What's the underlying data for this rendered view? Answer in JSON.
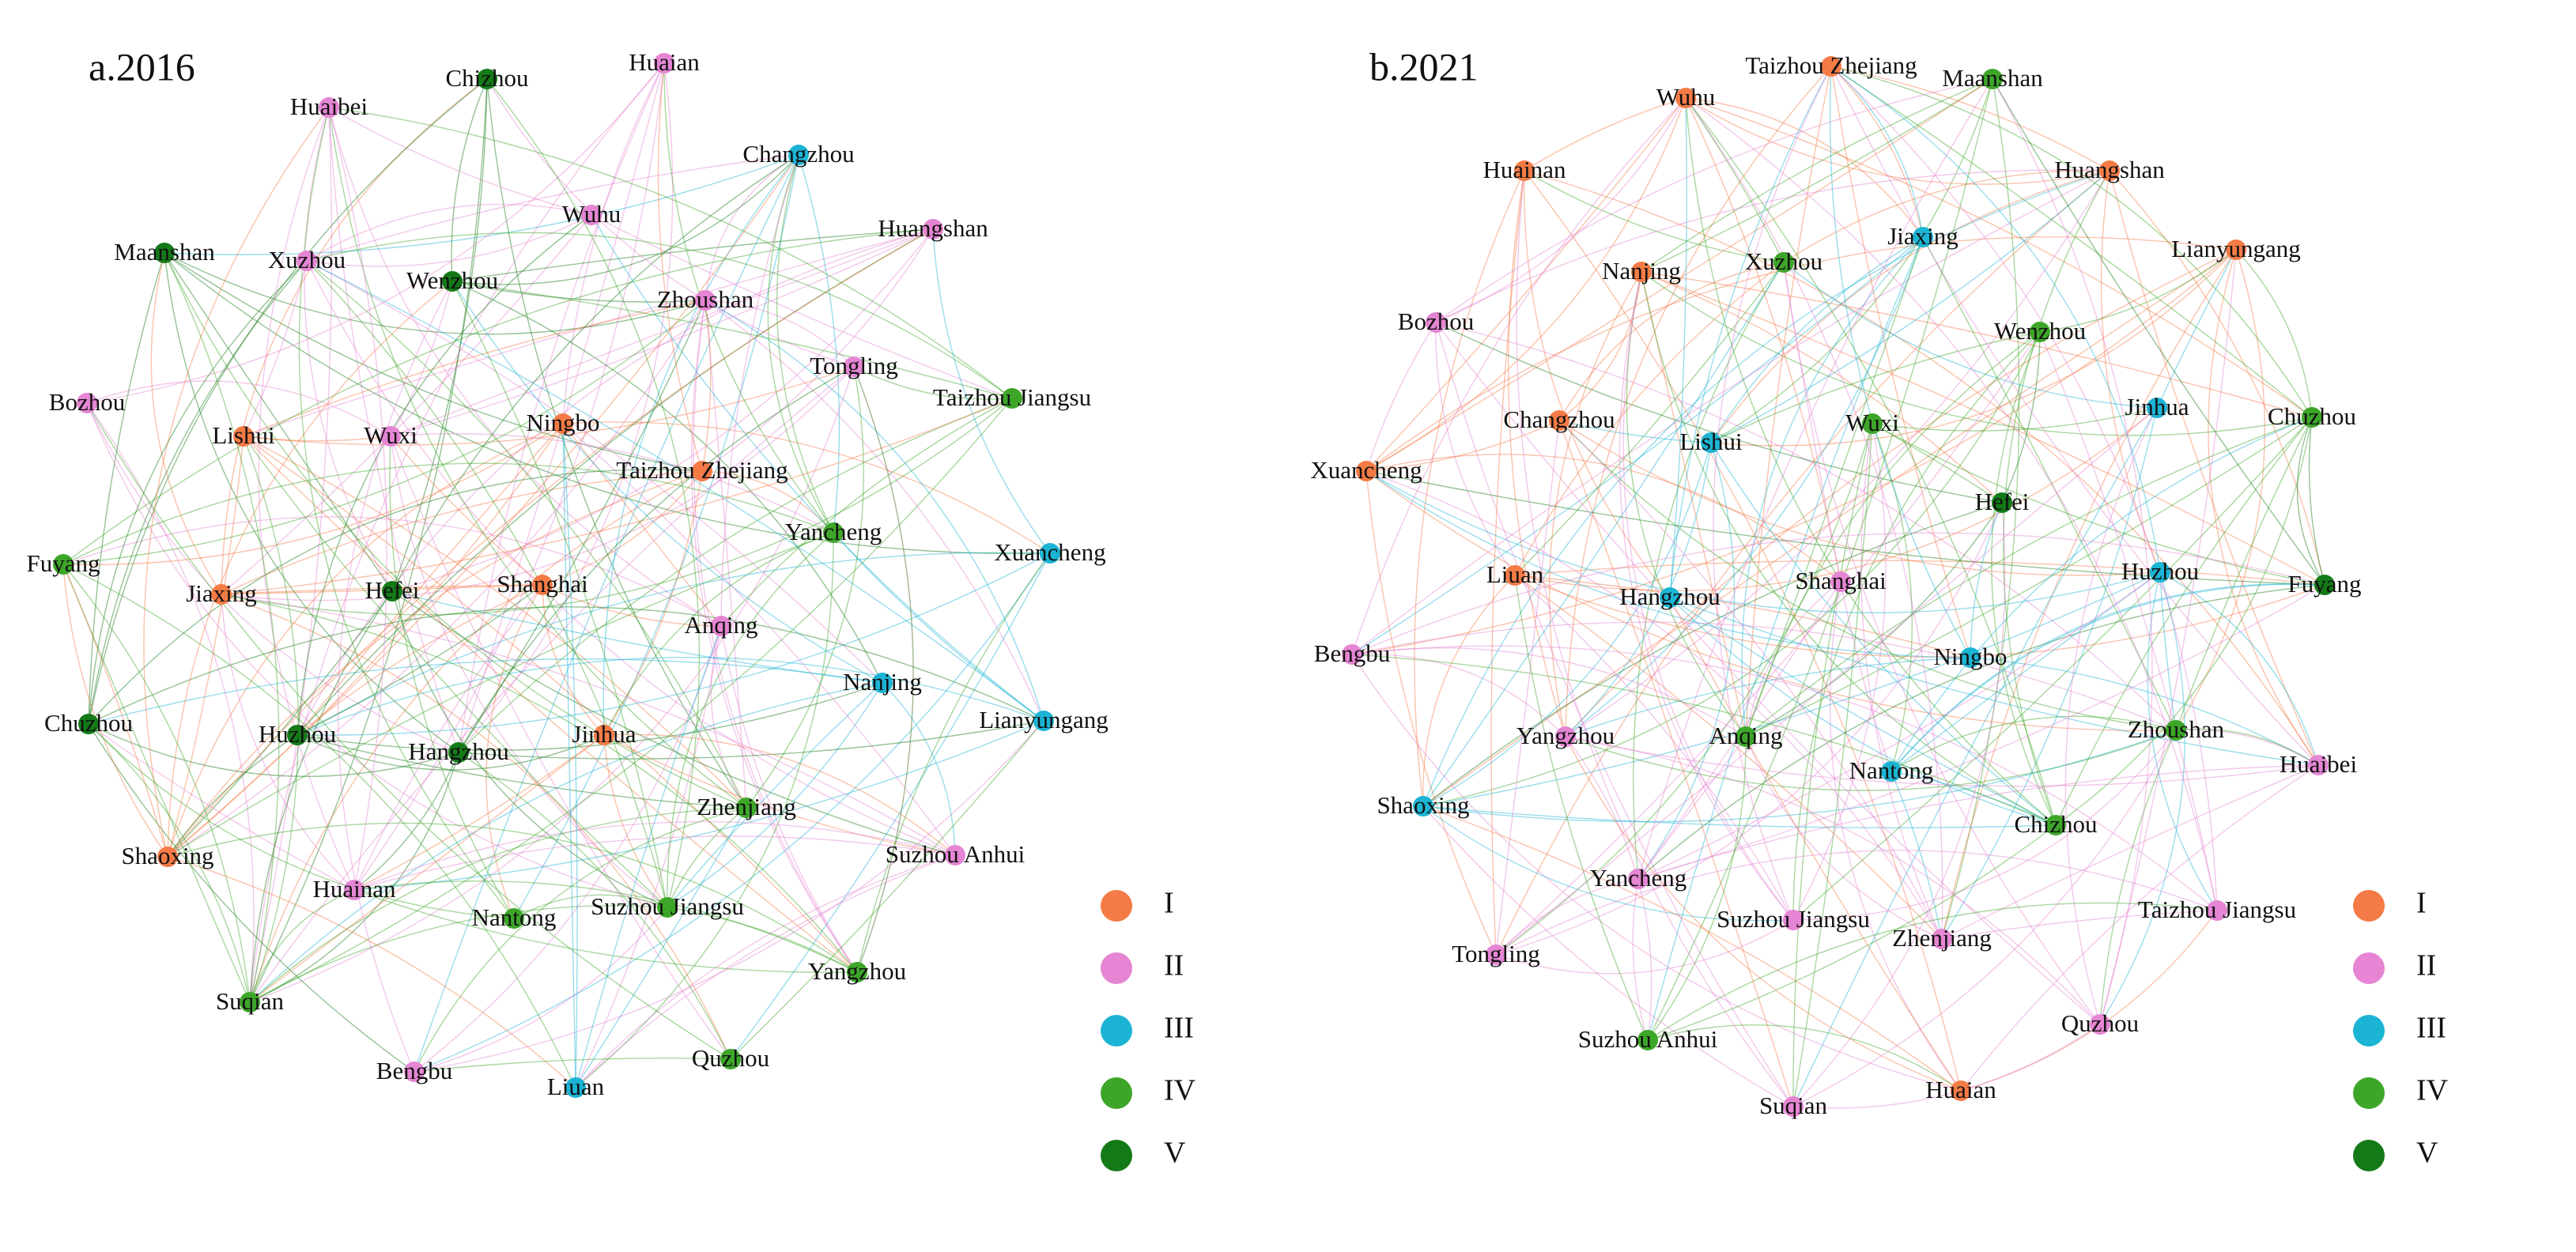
{
  "panels": [
    {
      "title": "a.2016",
      "nodes": [
        {
          "label": "Chizhou",
          "group": "V"
        },
        {
          "label": "Huaian",
          "group": "II"
        },
        {
          "label": "Huaibei",
          "group": "II"
        },
        {
          "label": "Changzhou",
          "group": "III"
        },
        {
          "label": "Wuhu",
          "group": "II"
        },
        {
          "label": "Huangshan",
          "group": "II"
        },
        {
          "label": "Maanshan",
          "group": "V"
        },
        {
          "label": "Xuzhou",
          "group": "II"
        },
        {
          "label": "Wenzhou",
          "group": "V"
        },
        {
          "label": "Zhoushan",
          "group": "II"
        },
        {
          "label": "Tongling",
          "group": "II"
        },
        {
          "label": "Taizhou Jiangsu",
          "group": "IV"
        },
        {
          "label": "Bozhou",
          "group": "II"
        },
        {
          "label": "Lishui",
          "group": "I"
        },
        {
          "label": "Wuxi",
          "group": "II"
        },
        {
          "label": "Ningbo",
          "group": "I"
        },
        {
          "label": "Taizhou Zhejiang",
          "group": "I"
        },
        {
          "label": "Yancheng",
          "group": "IV"
        },
        {
          "label": "Xuancheng",
          "group": "III"
        },
        {
          "label": "Fuyang",
          "group": "IV"
        },
        {
          "label": "Jiaxing",
          "group": "I"
        },
        {
          "label": "Hefei",
          "group": "V"
        },
        {
          "label": "Shanghai",
          "group": "I"
        },
        {
          "label": "Anqing",
          "group": "II"
        },
        {
          "label": "Nanjing",
          "group": "III"
        },
        {
          "label": "Lianyungang",
          "group": "III"
        },
        {
          "label": "Chuzhou",
          "group": "V"
        },
        {
          "label": "Huzhou",
          "group": "V"
        },
        {
          "label": "Hangzhou",
          "group": "V"
        },
        {
          "label": "Jinhua",
          "group": "I"
        },
        {
          "label": "Zhenjiang",
          "group": "IV"
        },
        {
          "label": "Shaoxing",
          "group": "I"
        },
        {
          "label": "Suzhou Anhui",
          "group": "II"
        },
        {
          "label": "Huainan",
          "group": "II"
        },
        {
          "label": "Nantong",
          "group": "IV"
        },
        {
          "label": "Suzhou Jiangsu",
          "group": "IV"
        },
        {
          "label": "Yangzhou",
          "group": "IV"
        },
        {
          "label": "Suqian",
          "group": "IV"
        },
        {
          "label": "Bengbu",
          "group": "II"
        },
        {
          "label": "Liuan",
          "group": "III"
        },
        {
          "label": "Quzhou",
          "group": "IV"
        }
      ],
      "legend": [
        {
          "label": "I",
          "color": "#f47b46"
        },
        {
          "label": "II",
          "color": "#e585d3"
        },
        {
          "label": "III",
          "color": "#1cb4d4"
        },
        {
          "label": "IV",
          "color": "#3da629"
        },
        {
          "label": "V",
          "color": "#137a17"
        }
      ]
    },
    {
      "title": "b.2021",
      "nodes": [
        {
          "label": "Taizhou Zhejiang",
          "group": "I"
        },
        {
          "label": "Wuhu",
          "group": "I"
        },
        {
          "label": "Maanshan",
          "group": "IV"
        },
        {
          "label": "Huainan",
          "group": "I"
        },
        {
          "label": "Huangshan",
          "group": "I"
        },
        {
          "label": "Lianyungang",
          "group": "I"
        },
        {
          "label": "Jiaxing",
          "group": "III"
        },
        {
          "label": "Xuzhou",
          "group": "IV"
        },
        {
          "label": "Nanjing",
          "group": "I"
        },
        {
          "label": "Bozhou",
          "group": "II"
        },
        {
          "label": "Wenzhou",
          "group": "IV"
        },
        {
          "label": "Changzhou",
          "group": "I"
        },
        {
          "label": "Lishui",
          "group": "III"
        },
        {
          "label": "Wuxi",
          "group": "IV"
        },
        {
          "label": "Jinhua",
          "group": "III"
        },
        {
          "label": "Chuzhou",
          "group": "IV"
        },
        {
          "label": "Xuancheng",
          "group": "I"
        },
        {
          "label": "Hefei",
          "group": "V"
        },
        {
          "label": "Liuan",
          "group": "I"
        },
        {
          "label": "Shanghai",
          "group": "II"
        },
        {
          "label": "Hangzhou",
          "group": "III"
        },
        {
          "label": "Huzhou",
          "group": "III"
        },
        {
          "label": "Fuyang",
          "group": "V"
        },
        {
          "label": "Bengbu",
          "group": "II"
        },
        {
          "label": "Ningbo",
          "group": "III"
        },
        {
          "label": "Yangzhou",
          "group": "II"
        },
        {
          "label": "Anqing",
          "group": "IV"
        },
        {
          "label": "Zhoushan",
          "group": "IV"
        },
        {
          "label": "Huaibei",
          "group": "II"
        },
        {
          "label": "Nantong",
          "group": "III"
        },
        {
          "label": "Shaoxing",
          "group": "III"
        },
        {
          "label": "Chizhou",
          "group": "IV"
        },
        {
          "label": "Yancheng",
          "group": "II"
        },
        {
          "label": "Suzhou Jiangsu",
          "group": "II"
        },
        {
          "label": "Zhenjiang",
          "group": "II"
        },
        {
          "label": "Taizhou Jiangsu",
          "group": "II"
        },
        {
          "label": "Tongling",
          "group": "II"
        },
        {
          "label": "Quzhou",
          "group": "II"
        },
        {
          "label": "Suzhou Anhui",
          "group": "IV"
        },
        {
          "label": "Huaian",
          "group": "I"
        },
        {
          "label": "Suqian",
          "group": "II"
        }
      ],
      "legend": [
        {
          "label": "I",
          "color": "#f47b46"
        },
        {
          "label": "II",
          "color": "#e585d3"
        },
        {
          "label": "III",
          "color": "#1cb4d4"
        },
        {
          "label": "IV",
          "color": "#3da629"
        },
        {
          "label": "V",
          "color": "#137a17"
        }
      ]
    }
  ]
}
